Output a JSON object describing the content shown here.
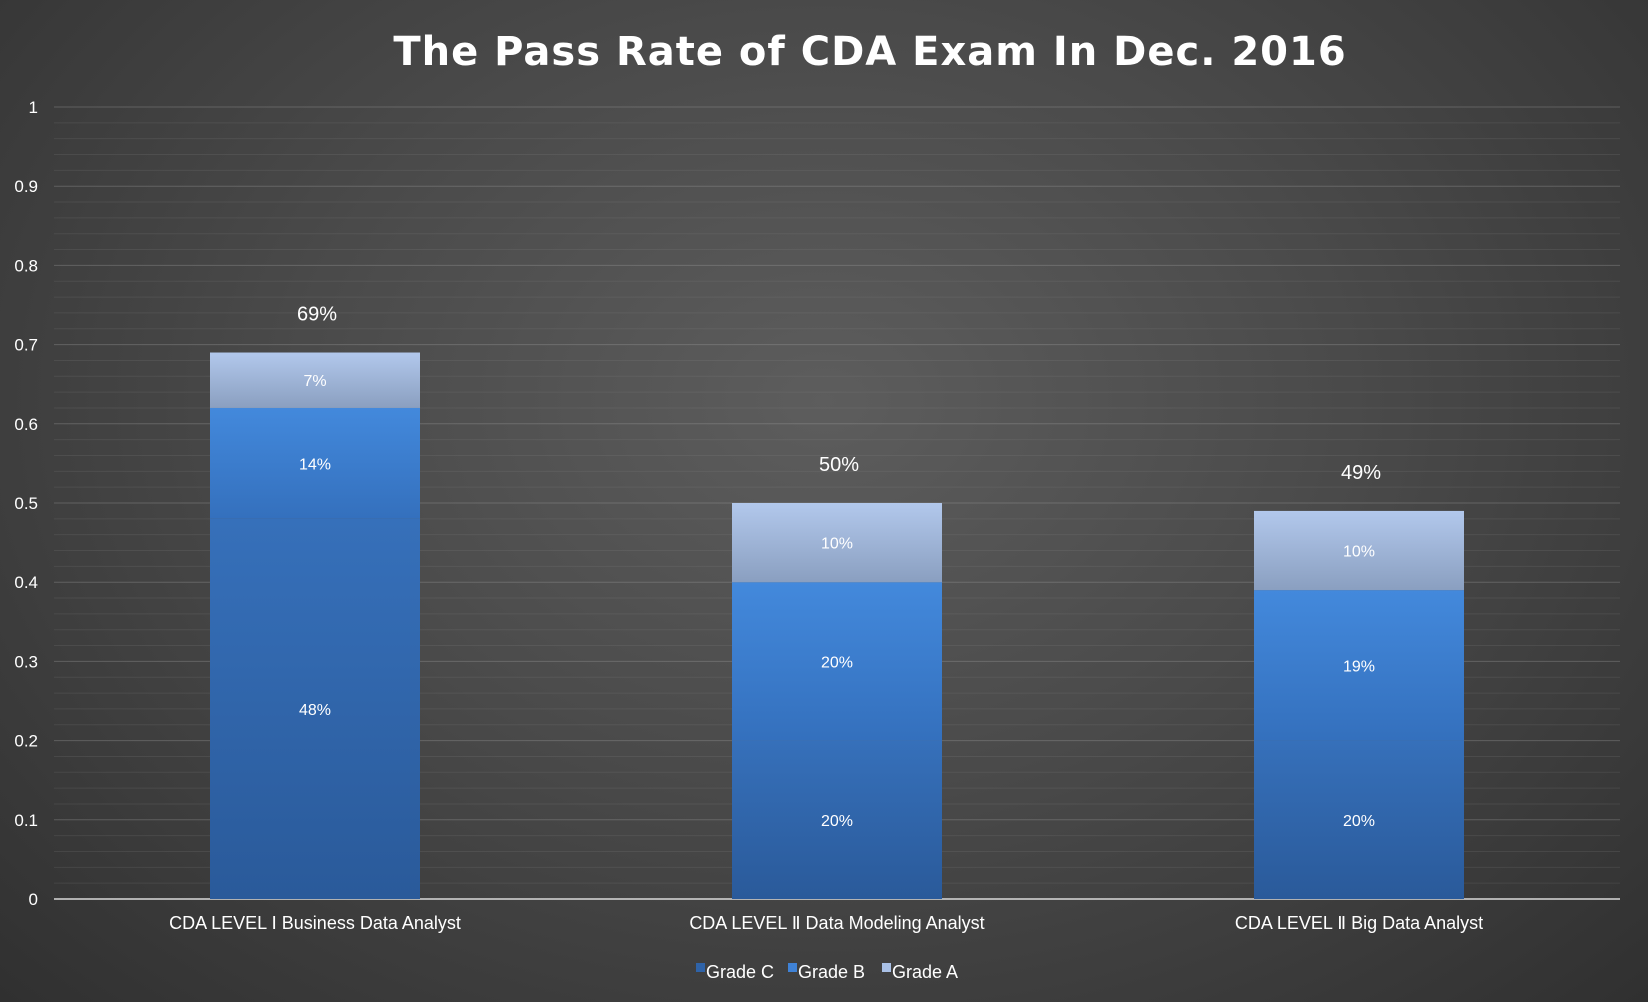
{
  "chart_data": {
    "type": "bar",
    "stacked": true,
    "title": "The Pass Rate of CDA Exam In Dec. 2016",
    "xlabel": "",
    "ylabel": "",
    "ylim": [
      0,
      1
    ],
    "yticks": [
      "0",
      "0.1",
      "0.2",
      "0.3",
      "0.4",
      "0.5",
      "0.6",
      "0.7",
      "0.8",
      "0.9",
      "1"
    ],
    "grid": true,
    "legend_position": "bottom",
    "categories": [
      "CDA LEVEL Ⅰ Business Data Analyst",
      "CDA LEVEL Ⅱ Data Modeling Analyst",
      "CDA LEVEL Ⅱ Big Data Analyst"
    ],
    "series": [
      {
        "name": "Grade C",
        "values": [
          0.48,
          0.2,
          0.2
        ],
        "labels": [
          "48%",
          "20%",
          "20%"
        ],
        "color": "#2f63a8"
      },
      {
        "name": "Grade B",
        "values": [
          0.14,
          0.2,
          0.19
        ],
        "labels": [
          "14%",
          "20%",
          "19%"
        ],
        "color": "#3f82d6"
      },
      {
        "name": "Grade A",
        "values": [
          0.07,
          0.1,
          0.1
        ],
        "labels": [
          "7%",
          "10%",
          "10%"
        ],
        "color": "#a9c0e6"
      }
    ],
    "totals": {
      "values": [
        0.69,
        0.5,
        0.49
      ],
      "labels": [
        "69%",
        "50%",
        "49%"
      ]
    }
  }
}
